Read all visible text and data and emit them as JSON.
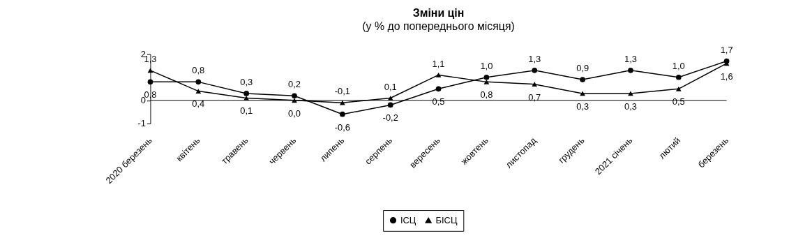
{
  "chart_data": {
    "type": "line",
    "title": "Зміни цін",
    "subtitle": "(у % до попереднього місяця)",
    "categories": [
      "2020 березень",
      "квітень",
      "травень",
      "червень",
      "липень",
      "серпень",
      "вересень",
      "жовтень",
      "листопад",
      "грудень",
      "2021 січень",
      "лютий",
      "березень"
    ],
    "series": [
      {
        "name": "ІСЦ",
        "color": "#000000",
        "marker": "circle",
        "values": [
          0.8,
          0.8,
          0.3,
          0.2,
          -0.6,
          -0.2,
          0.5,
          1.0,
          1.3,
          0.9,
          1.3,
          1.0,
          1.7
        ],
        "value_labels": [
          "0,8",
          "0,8",
          "0,3",
          "0,2",
          "-0,6",
          "-0,2",
          "0,5",
          "1,0",
          "1,3",
          "0,9",
          "1,3",
          "1,0",
          "1,7"
        ]
      },
      {
        "name": "БІСЦ",
        "color": "#000000",
        "marker": "triangle",
        "values": [
          1.3,
          0.4,
          0.1,
          0.0,
          -0.1,
          0.1,
          1.1,
          0.8,
          0.7,
          0.3,
          0.3,
          0.5,
          1.6
        ],
        "value_labels": [
          "1,3",
          "0,4",
          "0,1",
          "0,0",
          "-0,1",
          "0,1",
          "1,1",
          "0,8",
          "0,7",
          "0,3",
          "0,3",
          "0,5",
          "1,6"
        ]
      }
    ],
    "ylim": [
      -1,
      2
    ],
    "yticks": [
      -1,
      0,
      2
    ],
    "grid": false,
    "legend": "bottom",
    "line_style": "solid",
    "ref_lines": [
      {
        "axis": "y",
        "value": 0,
        "color": "#000000"
      }
    ]
  }
}
